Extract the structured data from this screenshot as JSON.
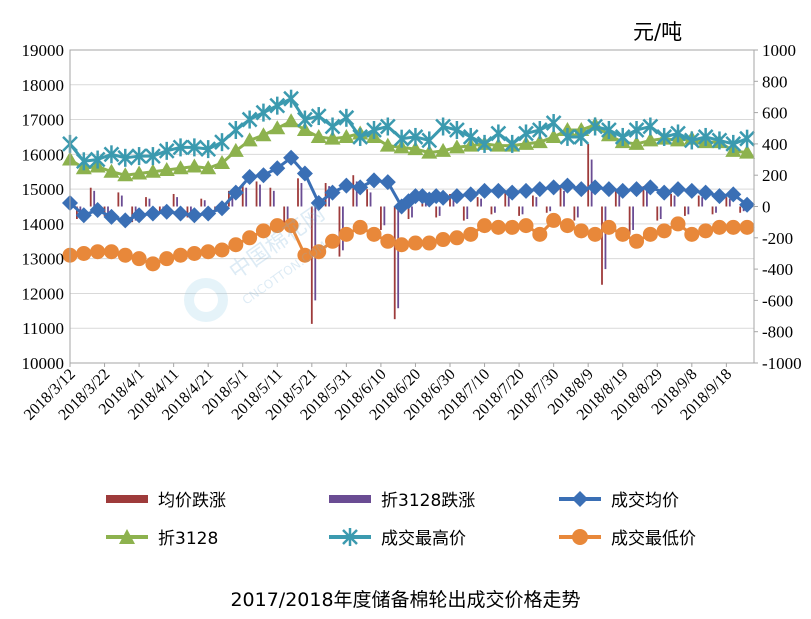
{
  "unit_label": "元/吨",
  "title": "2017/2018年度储备棉轮出成交价格走势",
  "watermark": {
    "main": "中国棉花网",
    "sub": "CNCOTTON.COM"
  },
  "legend": [
    {
      "label": "均价跌涨",
      "icon": "bar-swatch",
      "color": "#9e3b3b"
    },
    {
      "label": "折3128跌涨",
      "icon": "bar-swatch",
      "color": "#6a4c93"
    },
    {
      "label": "成交均价",
      "icon": "diamond-line",
      "color": "#3a6fb5"
    },
    {
      "label": "折3128",
      "icon": "triangle-line",
      "color": "#8db24e"
    },
    {
      "label": "成交最高价",
      "icon": "star-line",
      "color": "#3b9aaf"
    },
    {
      "label": "成交最低价",
      "icon": "circle-line",
      "color": "#e8883a"
    }
  ],
  "chart_data": {
    "type": "line",
    "left_axis": {
      "ylim": [
        10000,
        19000
      ],
      "ticks": [
        "10000",
        "11000",
        "12000",
        "13000",
        "14000",
        "15000",
        "16000",
        "17000",
        "18000",
        "19000"
      ]
    },
    "right_axis": {
      "ylim": [
        -1000,
        1000
      ],
      "ticks": [
        "-1000",
        "-800",
        "-600",
        "-400",
        "-200",
        "0",
        "200",
        "400",
        "600",
        "800",
        "1000"
      ]
    },
    "x_tick_labels": [
      "2018/3/12",
      "2018/3/22",
      "2018/4/1",
      "2018/4/11",
      "2018/4/21",
      "2018/5/1",
      "2018/5/11",
      "2018/5/21",
      "2018/5/31",
      "2018/6/10",
      "2018/6/20",
      "2018/6/30",
      "2018/7/10",
      "2018/7/20",
      "2018/7/30",
      "2018/8/9",
      "2018/8/19",
      "2018/8/29",
      "2018/9/8",
      "2018/9/18"
    ],
    "x_range_days": [
      0,
      198
    ],
    "grid": true,
    "series": [
      {
        "name": "成交均价",
        "axis": "left",
        "marker": "diamond",
        "color": "#3a6fb5",
        "x": [
          0,
          4,
          8,
          12,
          16,
          20,
          24,
          28,
          32,
          36,
          40,
          44,
          48,
          52,
          56,
          60,
          64,
          68,
          72,
          76,
          80,
          84,
          88,
          92,
          96,
          98,
          100,
          102,
          104,
          106,
          108,
          112,
          116,
          120,
          124,
          128,
          132,
          136,
          140,
          144,
          148,
          152,
          156,
          160,
          164,
          168,
          172,
          176,
          180,
          184,
          188,
          192,
          196
        ],
        "y": [
          14600,
          14250,
          14400,
          14200,
          14100,
          14250,
          14300,
          14350,
          14300,
          14250,
          14300,
          14450,
          14900,
          15350,
          15400,
          15600,
          15900,
          15450,
          14600,
          14900,
          15100,
          15050,
          15250,
          15200,
          14500,
          14650,
          14800,
          14800,
          14700,
          14800,
          14750,
          14800,
          14850,
          14950,
          14950,
          14900,
          14950,
          15000,
          15050,
          15100,
          15000,
          15050,
          15000,
          14950,
          15000,
          15050,
          14900,
          15000,
          14950,
          14900,
          14800,
          14850,
          14550
        ]
      },
      {
        "name": "折3128",
        "axis": "left",
        "marker": "triangle",
        "color": "#8db24e",
        "x": [
          0,
          4,
          8,
          12,
          16,
          20,
          24,
          28,
          32,
          36,
          40,
          44,
          48,
          52,
          56,
          60,
          64,
          68,
          72,
          76,
          80,
          84,
          88,
          92,
          96,
          100,
          104,
          108,
          112,
          116,
          120,
          124,
          128,
          132,
          136,
          140,
          144,
          148,
          152,
          156,
          160,
          164,
          168,
          172,
          176,
          180,
          184,
          188,
          192,
          196
        ],
        "y": [
          15850,
          15600,
          15650,
          15500,
          15400,
          15450,
          15500,
          15550,
          15600,
          15650,
          15600,
          15750,
          16100,
          16400,
          16550,
          16750,
          16950,
          16700,
          16500,
          16450,
          16500,
          16600,
          16500,
          16250,
          16200,
          16150,
          16050,
          16100,
          16200,
          16250,
          16300,
          16250,
          16250,
          16300,
          16350,
          16500,
          16700,
          16700,
          16850,
          16550,
          16350,
          16300,
          16400,
          16450,
          16400,
          16450,
          16350,
          16350,
          16100,
          16050
        ]
      },
      {
        "name": "成交最高价",
        "axis": "left",
        "marker": "star",
        "color": "#3b9aaf",
        "x": [
          0,
          4,
          8,
          12,
          16,
          20,
          24,
          28,
          32,
          36,
          40,
          44,
          48,
          52,
          56,
          60,
          64,
          68,
          72,
          76,
          80,
          84,
          88,
          92,
          96,
          100,
          104,
          108,
          112,
          116,
          120,
          124,
          128,
          132,
          136,
          140,
          144,
          148,
          152,
          156,
          160,
          164,
          168,
          172,
          176,
          180,
          184,
          188,
          192,
          196
        ],
        "y": [
          16300,
          15800,
          15850,
          16000,
          15900,
          15950,
          15950,
          16100,
          16200,
          16200,
          16150,
          16350,
          16700,
          17000,
          17200,
          17400,
          17600,
          17000,
          17100,
          16800,
          17050,
          16500,
          16700,
          16800,
          16450,
          16500,
          16400,
          16800,
          16700,
          16500,
          16300,
          16600,
          16300,
          16600,
          16700,
          16900,
          16500,
          16500,
          16800,
          16700,
          16500,
          16700,
          16800,
          16500,
          16600,
          16400,
          16500,
          16400,
          16300,
          16450
        ]
      },
      {
        "name": "成交最低价",
        "axis": "left",
        "marker": "circle",
        "color": "#e8883a",
        "x": [
          0,
          4,
          8,
          12,
          16,
          20,
          24,
          28,
          32,
          36,
          40,
          44,
          48,
          52,
          56,
          60,
          64,
          68,
          72,
          76,
          80,
          84,
          88,
          92,
          96,
          100,
          104,
          108,
          112,
          116,
          120,
          124,
          128,
          132,
          136,
          140,
          144,
          148,
          152,
          156,
          160,
          164,
          168,
          172,
          176,
          180,
          184,
          188,
          192,
          196
        ],
        "y": [
          13100,
          13150,
          13200,
          13200,
          13100,
          13000,
          12850,
          13000,
          13100,
          13150,
          13200,
          13250,
          13400,
          13600,
          13800,
          13950,
          13950,
          13100,
          13200,
          13500,
          13700,
          13900,
          13700,
          13500,
          13400,
          13450,
          13450,
          13550,
          13600,
          13700,
          13950,
          13900,
          13900,
          13950,
          13700,
          14100,
          13950,
          13800,
          13700,
          13900,
          13700,
          13500,
          13700,
          13800,
          14000,
          13700,
          13800,
          13900,
          13900,
          13900
        ]
      },
      {
        "name": "均价跌涨",
        "axis": "right",
        "type": "bar",
        "color": "#9e3b3b",
        "x": [
          2,
          6,
          10,
          14,
          18,
          22,
          26,
          30,
          34,
          38,
          42,
          46,
          50,
          54,
          58,
          62,
          66,
          70,
          74,
          78,
          82,
          86,
          90,
          94,
          98,
          102,
          106,
          110,
          114,
          118,
          122,
          126,
          130,
          134,
          138,
          142,
          146,
          150,
          154,
          158,
          162,
          166,
          170,
          174,
          178,
          182,
          186,
          190,
          194
        ],
        "y": [
          -80,
          120,
          -60,
          90,
          -100,
          60,
          -40,
          80,
          -70,
          50,
          -30,
          100,
          140,
          160,
          120,
          -120,
          180,
          -750,
          150,
          -320,
          200,
          110,
          -150,
          -720,
          -80,
          60,
          -70,
          80,
          -90,
          60,
          -50,
          90,
          -60,
          70,
          -40,
          120,
          -90,
          400,
          -500,
          110,
          -180,
          130,
          -90,
          80,
          -60,
          70,
          -50,
          60,
          -40
        ]
      },
      {
        "name": "折3128跌涨",
        "axis": "right",
        "type": "bar",
        "color": "#6a4c93",
        "x": [
          3,
          7,
          11,
          15,
          19,
          23,
          27,
          31,
          35,
          39,
          43,
          47,
          51,
          55,
          59,
          63,
          67,
          71,
          75,
          79,
          83,
          87,
          91,
          95,
          99,
          103,
          107,
          111,
          115,
          119,
          123,
          127,
          131,
          135,
          139,
          143,
          147,
          151,
          155,
          159,
          163,
          167,
          171,
          175,
          179,
          183,
          187,
          191,
          195
        ],
        "y": [
          -60,
          100,
          -50,
          70,
          -90,
          50,
          -30,
          60,
          -60,
          40,
          -20,
          80,
          120,
          140,
          100,
          -100,
          150,
          -600,
          130,
          -280,
          160,
          90,
          -120,
          -650,
          -70,
          50,
          -60,
          70,
          -80,
          50,
          -40,
          80,
          -50,
          60,
          -30,
          100,
          -70,
          300,
          -400,
          90,
          -150,
          110,
          -80,
          70,
          -50,
          60,
          -40,
          50,
          -30
        ]
      }
    ]
  }
}
